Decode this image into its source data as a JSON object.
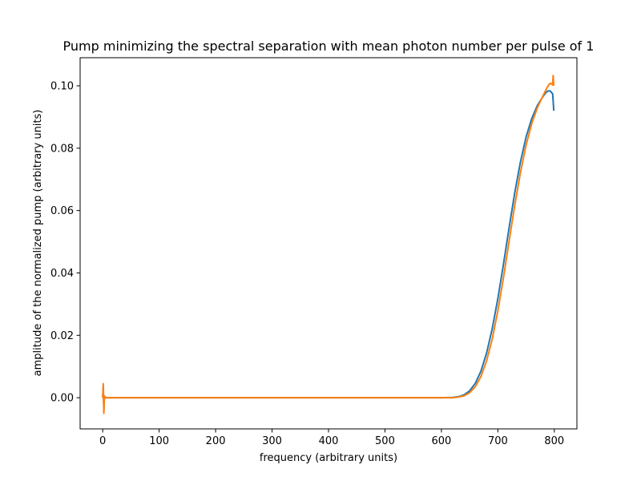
{
  "chart_data": {
    "type": "line",
    "title": "Pump minimizing the spectral separation with mean photon number per pulse of 1",
    "xlabel": "frequency (arbitrary units)",
    "ylabel": "amplitude of the normalized pump (arbitrary units)",
    "xlim": [
      -40,
      840
    ],
    "ylim": [
      -0.01,
      0.109
    ],
    "xticks": [
      0,
      100,
      200,
      300,
      400,
      500,
      600,
      700,
      800
    ],
    "xtick_labels": [
      "0",
      "100",
      "200",
      "300",
      "400",
      "500",
      "600",
      "700",
      "800"
    ],
    "yticks": [
      0.0,
      0.02,
      0.04,
      0.06,
      0.08,
      0.1
    ],
    "ytick_labels": [
      "0.00",
      "0.02",
      "0.04",
      "0.06",
      "0.08",
      "0.10"
    ],
    "grid": false,
    "legend": "none",
    "series": [
      {
        "color": "#1f77b4",
        "x": [
          0,
          1,
          2,
          3,
          5,
          10,
          50,
          100,
          200,
          300,
          400,
          500,
          560,
          600,
          620,
          630,
          640,
          650,
          660,
          670,
          680,
          690,
          700,
          710,
          720,
          730,
          740,
          750,
          760,
          770,
          780,
          786,
          790,
          793,
          795,
          797,
          798,
          799
        ],
        "y": [
          0.0,
          0.0035,
          -0.004,
          0.0005,
          0.0,
          0.0,
          0.0,
          0.0,
          0.0,
          0.0,
          0.0,
          0.0,
          0.0,
          0.0,
          0.0001,
          0.0003,
          0.0009,
          0.0022,
          0.0046,
          0.0085,
          0.0143,
          0.0221,
          0.0318,
          0.0429,
          0.0546,
          0.0658,
          0.0756,
          0.0836,
          0.0895,
          0.0937,
          0.0966,
          0.098,
          0.0984,
          0.0983,
          0.0978,
          0.0975,
          0.095,
          0.092
        ]
      },
      {
        "color": "#ff7f0e",
        "x": [
          0,
          1,
          2,
          3,
          5,
          10,
          50,
          100,
          200,
          300,
          400,
          500,
          560,
          600,
          620,
          630,
          640,
          650,
          660,
          670,
          680,
          690,
          700,
          710,
          720,
          730,
          740,
          750,
          760,
          770,
          780,
          786,
          790,
          793,
          795,
          797,
          798,
          799
        ],
        "y": [
          0.0,
          0.0045,
          -0.005,
          0.0005,
          0.0,
          0.0,
          0.0,
          0.0,
          0.0,
          0.0,
          0.0,
          0.0,
          0.0,
          0.0,
          0.0,
          0.0002,
          0.0006,
          0.0016,
          0.0035,
          0.0068,
          0.0118,
          0.0188,
          0.0279,
          0.0386,
          0.0503,
          0.0618,
          0.0722,
          0.081,
          0.0879,
          0.093,
          0.0968,
          0.099,
          0.1003,
          0.1008,
          0.1006,
          0.1003,
          0.1033,
          0.1
        ]
      }
    ]
  }
}
